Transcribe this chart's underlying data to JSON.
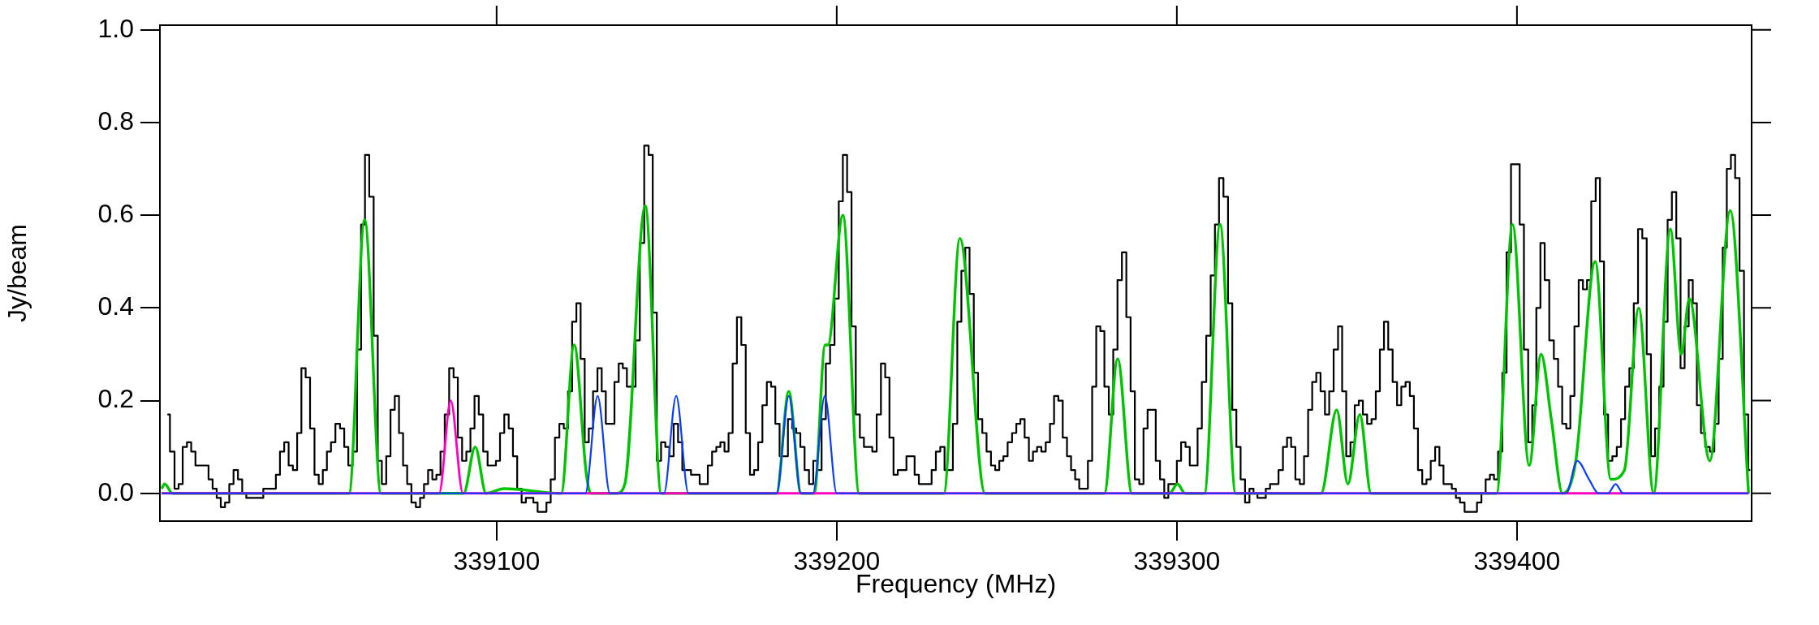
{
  "chart_data": {
    "type": "step",
    "xlabel": "Frequency (MHz)",
    "ylabel": "Jy/beam",
    "xlim": [
      339001,
      339469
    ],
    "xticks": [
      339100,
      339200,
      339300,
      339400
    ],
    "ylim": [
      -0.06,
      1.01
    ],
    "yticks": [
      {
        "value": 0,
        "label": "0.0"
      },
      {
        "value": 0.2,
        "label": "0.2"
      },
      {
        "value": 0.4,
        "label": "0.4"
      },
      {
        "value": 0.6,
        "label": "0.6"
      },
      {
        "value": 0.8,
        "label": "0.8"
      },
      {
        "value": 1,
        "label": "1.0"
      }
    ],
    "series": [
      {
        "type": "step",
        "color": "#000000",
        "x": [
          339003.2,
          339004.7,
          339005.9,
          339007.1,
          339008.3,
          339009.6,
          339010.8,
          339012.1,
          339013.4,
          339014.7,
          339015.9,
          339017.1,
          339018.3,
          339019.5,
          339020.8,
          339022.0,
          339023.3,
          339024.6,
          339025.8,
          339027.0,
          339028.3,
          339029.6,
          339030.8,
          339032.0,
          339033.2,
          339034.5,
          339035.7,
          339036.9,
          339038.2,
          339039.5,
          339040.7,
          339042.0,
          339043.2,
          339044.5,
          339045.8,
          339047.1,
          339048.3,
          339049.5,
          339050.7,
          339051.9,
          339053.3,
          339054.6,
          339055.8,
          339057.0,
          339058.3,
          339059.6,
          339060.7,
          339061.9,
          339063.2,
          339064.5,
          339065.6,
          339066.9,
          339068.2,
          339069.4,
          339070.7,
          339071.9,
          339073.1,
          339074.3,
          339075.6,
          339076.9,
          339078.1,
          339079.2,
          339080.5,
          339081.7,
          339082.9,
          339084.1,
          339085.4,
          339086.7,
          339088.0,
          339089.2,
          339090.5,
          339091.7,
          339092.9,
          339094.1,
          339095.4,
          339096.7,
          339098.0,
          339099.2,
          339100.4,
          339101.6,
          339102.9,
          339104.2,
          339105.4,
          339106.7,
          339108.0,
          339109.2,
          339110.2,
          339111.4,
          339112.7,
          339114.0,
          339115.3,
          339116.5,
          339117.8,
          339119.1,
          339120.4,
          339121.6,
          339122.8,
          339124.1,
          339125.3,
          339126.5,
          339127.7,
          339129.0,
          339130.3,
          339131.5,
          339132.7,
          339134.0,
          339135.3,
          339136.5,
          339137.7,
          339138.9,
          339140.2,
          339141.5,
          339142.7,
          339144.1,
          339145.3,
          339146.5,
          339147.7,
          339149.0,
          339150.2,
          339151.4,
          339152.7,
          339154.0,
          339155.2,
          339156.5,
          339157.8,
          339159.1,
          339160.3,
          339161.5,
          339162.7,
          339164.0,
          339165.2,
          339166.4,
          339167.6,
          339168.8,
          339170.0,
          339171.3,
          339172.6,
          339173.9,
          339175.1,
          339176.3,
          339177.5,
          339178.8,
          339180.1,
          339181.3,
          339182.6,
          339183.8,
          339185.0,
          339186.3,
          339187.5,
          339188.7,
          339189.9,
          339191.2,
          339192.5,
          339193.7,
          339194.9,
          339196.2,
          339197.4,
          339198.7,
          339200.0,
          339201.2,
          339202.4,
          339203.7,
          339205.0,
          339206.2,
          339207.4,
          339208.6,
          339209.8,
          339211.1,
          339212.4,
          339213.6,
          339214.9,
          339216.1,
          339217.3,
          339218.6,
          339219.9,
          339221.1,
          339222.3,
          339223.5,
          339224.8,
          339226.1,
          339227.3,
          339228.5,
          339229.8,
          339231.1,
          339232.3,
          339233.5,
          339234.8,
          339236.1,
          339237.2,
          339238.4,
          339239.7,
          339240.9,
          339242.2,
          339243.4,
          339244.7,
          339246.0,
          339247.2,
          339248.4,
          339249.6,
          339250.9,
          339252.2,
          339253.4,
          339254.6,
          339255.9,
          339257.1,
          339258.3,
          339259.5,
          339260.8,
          339262.1,
          339263.3,
          339264.5,
          339265.8,
          339267.1,
          339268.3,
          339269.5,
          339270.7,
          339271.9,
          339273.2,
          339274.5,
          339275.7,
          339276.9,
          339278.1,
          339279.3,
          339280.7,
          339281.9,
          339283.2,
          339284.5,
          339285.8,
          339287.0,
          339288.3,
          339289.6,
          339290.8,
          339292.0,
          339293.2,
          339294.4,
          339295.7,
          339296.9,
          339298.1,
          339299.4,
          339300.6,
          339301.9,
          339303.2,
          339304.4,
          339305.5,
          339306.7,
          339308.0,
          339309.3,
          339310.6,
          339311.8,
          339313.0,
          339314.4,
          339315.7,
          339316.9,
          339318.1,
          339319.4,
          339320.7,
          339322.0,
          339323.1,
          339324.3,
          339325.5,
          339326.8,
          339328.0,
          339329.2,
          339330.6,
          339331.8,
          339333.0,
          339334.2,
          339335.5,
          339336.8,
          339338.0,
          339339.2,
          339340.4,
          339341.6,
          339342.9,
          339344.2,
          339345.4,
          339346.8,
          339348.0,
          339349.2,
          339350.4,
          339351.7,
          339352.9,
          339354.1,
          339355.3,
          339356.6,
          339357.9,
          339359.1,
          339360.3,
          339361.5,
          339362.8,
          339364.1,
          339365.4,
          339366.6,
          339367.9,
          339369.1,
          339370.3,
          339371.5,
          339372.8,
          339374.0,
          339375.3,
          339376.6,
          339377.8,
          339379.0,
          339380.2,
          339381.5,
          339382.6,
          339383.9,
          339385.3,
          339386.5,
          339387.6,
          339388.9,
          339390.2,
          339391.4,
          339392.7,
          339393.8,
          339395.1,
          339396.3,
          339397.6,
          339398.9,
          339400.2,
          339401.4,
          339402.7,
          339403.9,
          339405.1,
          339406.3,
          339407.5,
          339408.8,
          339410.2,
          339411.5,
          339412.7,
          339413.9,
          339415.1,
          339416.3,
          339417.5,
          339418.8,
          339420.0,
          339421.2,
          339422.5,
          339423.8,
          339425.0,
          339426.2,
          339427.4,
          339428.7,
          339430.0,
          339431.2,
          339432.4,
          339433.7,
          339435.0,
          339436.2,
          339437.5,
          339438.8,
          339440.0,
          339441.2,
          339442.5,
          339443.7,
          339444.9,
          339446.2,
          339447.5,
          339448.7,
          339449.9,
          339451.1,
          339452.3,
          339453.5,
          339454.7,
          339456.0,
          339457.4,
          339458.7,
          339459.9,
          339461.1,
          339462.3,
          339463.5,
          339464.8,
          339466.1,
          339467.4,
          339468.6
        ],
        "values": [
          0.17,
          0.09,
          0.01,
          0.02,
          0.1,
          0.11,
          0.09,
          0.06,
          0.06,
          0.06,
          0.03,
          0.01,
          -0.01,
          -0.03,
          -0.02,
          0.02,
          0.05,
          0.03,
          0.0,
          -0.01,
          -0.01,
          -0.01,
          -0.01,
          0.01,
          0.01,
          0.01,
          0.04,
          0.09,
          0.11,
          0.06,
          0.05,
          0.13,
          0.27,
          0.25,
          0.14,
          0.04,
          0.02,
          0.05,
          0.09,
          0.11,
          0.15,
          0.14,
          0.1,
          0.06,
          0.09,
          0.31,
          0.58,
          0.73,
          0.64,
          0.34,
          0.07,
          0.02,
          0.08,
          0.18,
          0.21,
          0.13,
          0.06,
          0.02,
          -0.02,
          -0.03,
          -0.01,
          0.02,
          0.05,
          0.03,
          0.04,
          0.09,
          0.17,
          0.27,
          0.25,
          0.12,
          0.07,
          0.09,
          0.14,
          0.21,
          0.17,
          0.09,
          0.06,
          0.06,
          0.07,
          0.13,
          0.17,
          0.14,
          0.08,
          0.01,
          -0.02,
          -0.01,
          -0.01,
          -0.02,
          -0.04,
          -0.04,
          -0.02,
          0.03,
          0.12,
          0.15,
          0.14,
          0.22,
          0.37,
          0.41,
          0.29,
          0.11,
          0.14,
          0.22,
          0.27,
          0.22,
          0.15,
          0.15,
          0.24,
          0.28,
          0.27,
          0.23,
          0.23,
          0.33,
          0.54,
          0.75,
          0.73,
          0.39,
          0.07,
          0.11,
          0.1,
          0.08,
          0.15,
          0.11,
          0.05,
          0.05,
          0.04,
          0.04,
          0.02,
          0.02,
          0.06,
          0.09,
          0.1,
          0.11,
          0.09,
          0.13,
          0.28,
          0.38,
          0.32,
          0.13,
          0.04,
          0.05,
          0.11,
          0.19,
          0.24,
          0.23,
          0.15,
          0.08,
          0.08,
          0.16,
          0.14,
          0.13,
          0.1,
          0.05,
          0.02,
          0.07,
          0.05,
          0.16,
          0.28,
          0.32,
          0.42,
          0.63,
          0.73,
          0.65,
          0.36,
          0.17,
          0.12,
          0.1,
          0.1,
          0.09,
          0.17,
          0.28,
          0.25,
          0.12,
          0.04,
          0.05,
          0.05,
          0.08,
          0.08,
          0.04,
          0.02,
          0.02,
          0.02,
          0.05,
          0.09,
          0.1,
          0.05,
          0.05,
          0.15,
          0.37,
          0.48,
          0.53,
          0.43,
          0.26,
          0.16,
          0.13,
          0.09,
          0.06,
          0.05,
          0.07,
          0.08,
          0.11,
          0.13,
          0.15,
          0.16,
          0.12,
          0.07,
          0.09,
          0.1,
          0.09,
          0.11,
          0.15,
          0.21,
          0.2,
          0.12,
          0.08,
          0.05,
          0.03,
          0.01,
          0.01,
          0.07,
          0.23,
          0.36,
          0.35,
          0.23,
          0.17,
          0.31,
          0.46,
          0.52,
          0.38,
          0.22,
          0.03,
          0.02,
          0.14,
          0.18,
          0.18,
          0.07,
          0.03,
          -0.01,
          0.02,
          0.02,
          0.07,
          0.11,
          0.1,
          0.06,
          0.06,
          0.14,
          0.24,
          0.34,
          0.47,
          0.58,
          0.68,
          0.64,
          0.41,
          0.18,
          0.1,
          0.03,
          -0.02,
          0.01,
          0.0,
          -0.01,
          -0.01,
          0.01,
          0.02,
          0.02,
          0.05,
          0.1,
          0.12,
          0.1,
          0.03,
          0.02,
          0.08,
          0.18,
          0.24,
          0.26,
          0.22,
          0.17,
          0.22,
          0.31,
          0.36,
          0.22,
          0.08,
          0.11,
          0.19,
          0.2,
          0.17,
          0.15,
          0.16,
          0.22,
          0.31,
          0.37,
          0.31,
          0.24,
          0.19,
          0.23,
          0.24,
          0.21,
          0.14,
          0.05,
          0.02,
          0.03,
          0.07,
          0.1,
          0.06,
          0.02,
          0.02,
          0.01,
          -0.01,
          -0.02,
          -0.04,
          -0.04,
          -0.04,
          -0.02,
          0.0,
          0.03,
          0.04,
          0.03,
          0.09,
          0.26,
          0.52,
          0.71,
          0.71,
          0.58,
          0.31,
          0.11,
          0.19,
          0.4,
          0.54,
          0.46,
          0.33,
          0.29,
          0.23,
          0.15,
          0.14,
          0.21,
          0.36,
          0.46,
          0.44,
          0.46,
          0.63,
          0.68,
          0.5,
          0.17,
          0.07,
          0.08,
          0.1,
          0.16,
          0.23,
          0.27,
          0.41,
          0.57,
          0.55,
          0.3,
          0.08,
          0.14,
          0.23,
          0.37,
          0.59,
          0.65,
          0.55,
          0.27,
          0.36,
          0.46,
          0.41,
          0.19,
          0.13,
          0.1,
          0.09,
          0.15,
          0.29,
          0.53,
          0.7,
          0.73,
          0.68,
          0.48,
          0.17,
          0.05
        ]
      },
      {
        "type": "line",
        "color": "#00c400",
        "x": [
          339001.5,
          339002.4,
          339004.7,
          339056.6,
          339061.2,
          339066.0,
          339090.3,
          339093.7,
          339096.9,
          339102.2,
          339119.0,
          339122.8,
          339126.4,
          339127.7,
          339135.3,
          339137.7,
          339143.7,
          339148.4,
          339182.3,
          339185.9,
          339189.5,
          339193.4,
          339196.6,
          339197.4,
          339201.8,
          339206.6,
          339231.5,
          339236.2,
          339243.6,
          339278.7,
          339282.6,
          339286.8,
          339297.8,
          339300.2,
          339302.4,
          339308.1,
          339312.7,
          339317.3,
          339342.4,
          339347.0,
          339350.3,
          339353.8,
          339357.1,
          339394.0,
          339398.7,
          339403.6,
          339407.1,
          339410.1,
          339413.4,
          339417.3,
          339423.0,
          339427.6,
          339431.6,
          339435.8,
          339440.2,
          339445.1,
          339448.3,
          339450.7,
          339456.7,
          339462.7,
          339468.1
        ],
        "values": [
          0.01,
          0.02,
          0,
          0,
          0.59,
          0,
          0,
          0.1,
          0,
          0.01,
          0,
          0.32,
          0.04,
          0,
          0,
          0.02,
          0.62,
          0,
          0,
          0.22,
          0,
          0,
          0.32,
          0.32,
          0.6,
          0,
          0,
          0.55,
          0,
          0,
          0.29,
          0,
          0,
          0.02,
          0,
          0,
          0.58,
          0,
          0,
          0.18,
          0.02,
          0.17,
          0,
          0,
          0.58,
          0.06,
          0.3,
          0.16,
          0,
          0.07,
          0.5,
          0.03,
          0.05,
          0.4,
          0,
          0.57,
          0.3,
          0.42,
          0.07,
          0.61,
          0
        ]
      },
      {
        "type": "line",
        "color": "#ff00c0",
        "x": [
          339001.5,
          339083.1,
          339086.5,
          339090.1,
          339468.1
        ],
        "values": [
          0,
          0,
          0.2,
          0,
          0
        ]
      },
      {
        "type": "line",
        "color": "#0a3cff",
        "x": [
          339001.5,
          339126.1,
          339129.7,
          339133.3,
          339149.2,
          339152.8,
          339156.4,
          339182.3,
          339185.9,
          339189.5,
          339193.0,
          339196.5,
          339200.0,
          339414.5,
          339417.7,
          339421.2,
          339424.0,
          339426.8,
          339429.0,
          339431.2,
          339468.1
        ],
        "values": [
          0,
          0,
          0.21,
          0,
          0,
          0.21,
          0,
          0,
          0.21,
          0,
          0,
          0.21,
          0,
          0,
          0.07,
          0.03,
          0,
          0,
          0.02,
          0,
          0
        ]
      }
    ]
  }
}
